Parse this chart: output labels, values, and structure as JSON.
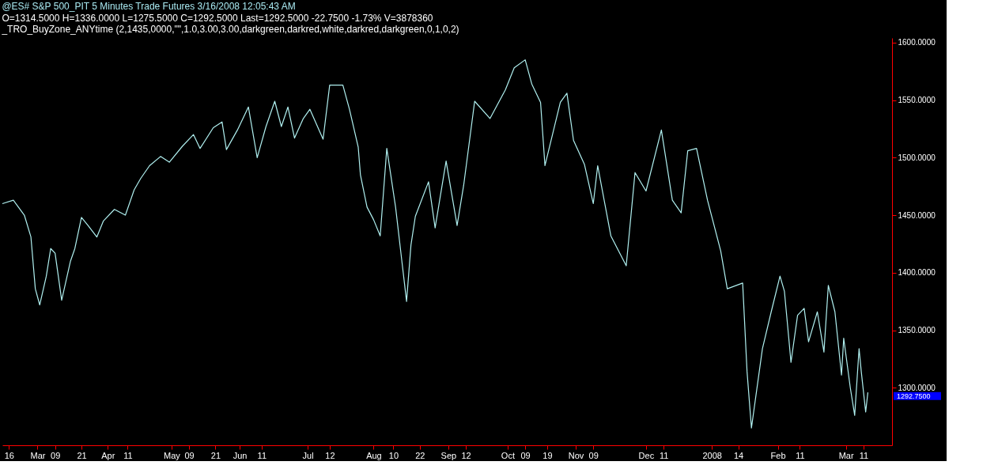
{
  "chart_data": {
    "type": "line",
    "title": "@ES#  S&P 500_PIT  5 Minutes  Trade  Futures  3/16/2008  12:05:43 AM",
    "subtitle": "O=1314.5000  H=1336.0000  L=1275.5000  C=1292.5000  Last=1292.5000  -22.7500  -1.73%  V=3878360",
    "annotations": [
      "_TRO_BuyZone_ANYtime  (2,1435,0000,\"\",1.0,3.00,3.00,darkgreen,darkred,white,darkred,darkgreen,0,1,0,2)"
    ],
    "x": [
      "2007-02-13",
      "2007-02-18",
      "2007-02-23",
      "2007-02-26",
      "2007-02-28",
      "2007-03-02",
      "2007-03-05",
      "2007-03-07",
      "2007-03-09",
      "2007-03-12",
      "2007-03-16",
      "2007-03-18",
      "2007-03-21",
      "2007-03-24",
      "2007-03-28",
      "2007-03-31",
      "2007-04-05",
      "2007-04-10",
      "2007-04-14",
      "2007-04-17",
      "2007-04-21",
      "2007-04-26",
      "2007-04-30",
      "2007-05-06",
      "2007-05-11",
      "2007-05-14",
      "2007-05-20",
      "2007-05-24",
      "2007-05-26",
      "2007-05-31",
      "2007-06-05",
      "2007-06-09",
      "2007-06-13",
      "2007-06-17",
      "2007-06-20",
      "2007-06-23",
      "2007-06-26",
      "2007-06-30",
      "2007-07-03",
      "2007-07-09",
      "2007-07-12",
      "2007-07-18",
      "2007-07-21",
      "2007-07-25",
      "2007-07-26",
      "2007-07-29",
      "2007-08-01",
      "2007-08-04",
      "2007-08-07",
      "2007-08-11",
      "2007-08-16",
      "2007-08-18",
      "2007-08-20",
      "2007-08-26",
      "2007-08-29",
      "2007-09-03",
      "2007-09-08",
      "2007-09-11",
      "2007-09-16",
      "2007-09-23",
      "2007-09-30",
      "2007-10-04",
      "2007-10-09",
      "2007-10-12",
      "2007-10-16",
      "2007-10-18",
      "2007-10-25",
      "2007-10-28",
      "2007-10-31",
      "2007-11-05",
      "2007-11-09",
      "2007-11-11",
      "2007-11-17",
      "2007-11-24",
      "2007-11-28",
      "2007-12-03",
      "2007-12-10",
      "2007-12-15",
      "2007-12-19",
      "2007-12-22",
      "2007-12-26",
      "2007-12-31",
      "2008-01-06",
      "2008-01-09",
      "2008-01-16",
      "2008-01-18",
      "2008-01-20",
      "2008-01-25",
      "2008-01-29",
      "2008-02-02",
      "2008-02-04",
      "2008-02-06",
      "2008-02-07",
      "2008-02-10",
      "2008-02-13",
      "2008-02-15",
      "2008-02-19",
      "2008-02-22",
      "2008-02-24",
      "2008-02-27",
      "2008-03-01",
      "2008-03-02",
      "2008-03-05",
      "2008-03-07",
      "2008-03-09",
      "2008-03-10",
      "2008-03-12",
      "2008-03-13"
    ],
    "series": [
      {
        "color": "#b0f0f0",
        "values": [
          1460,
          1463,
          1450,
          1431,
          1386,
          1372,
          1397,
          1421,
          1417,
          1376,
          1410,
          1421,
          1448,
          1441,
          1431,
          1445,
          1455,
          1450,
          1472,
          1482,
          1493,
          1501,
          1496,
          1510,
          1520,
          1508,
          1526,
          1531,
          1507,
          1524,
          1544,
          1500,
          1527,
          1549,
          1527,
          1544,
          1517,
          1534,
          1542,
          1516,
          1563,
          1563,
          1542,
          1509,
          1485,
          1457,
          1446,
          1432,
          1508,
          1457,
          1375,
          1424,
          1449,
          1479,
          1439,
          1497,
          1441,
          1476,
          1549,
          1534,
          1559,
          1578,
          1585,
          1564,
          1548,
          1493,
          1548,
          1556,
          1515,
          1494,
          1460,
          1493,
          1432,
          1406,
          1487,
          1471,
          1524,
          1463,
          1452,
          1506,
          1508,
          1463,
          1419,
          1386,
          1391,
          1314,
          1265,
          1334,
          1366,
          1397,
          1384,
          1343,
          1322,
          1363,
          1369,
          1340,
          1366,
          1331,
          1389,
          1366,
          1311,
          1343,
          1300,
          1276,
          1334,
          1314,
          1279,
          1296
        ]
      }
    ],
    "ylim": [
      1250,
      1604
    ],
    "yticks": [
      {
        "value": 1300,
        "label": "1300.0000"
      },
      {
        "value": 1350,
        "label": "1350.0000"
      },
      {
        "value": 1400,
        "label": "1400.0000"
      },
      {
        "value": 1450,
        "label": "1450.0000"
      },
      {
        "value": 1500,
        "label": "1500.0000"
      },
      {
        "value": 1550,
        "label": "1550.0000"
      },
      {
        "value": 1600,
        "label": "1600.0000"
      }
    ],
    "xlim": [
      "2007-02-13",
      "2008-03-24"
    ],
    "xticks": [
      {
        "value": "2007-02-16",
        "label": "16"
      },
      {
        "value": "2007-03-01",
        "label": "Mar"
      },
      {
        "value": "2007-03-09",
        "label": "09"
      },
      {
        "value": "2007-03-21",
        "label": "21"
      },
      {
        "value": "2007-04-02",
        "label": "Apr"
      },
      {
        "value": "2007-04-11",
        "label": "11"
      },
      {
        "value": "2007-05-01",
        "label": "May"
      },
      {
        "value": "2007-05-09",
        "label": "09"
      },
      {
        "value": "2007-05-21",
        "label": "21"
      },
      {
        "value": "2007-06-01",
        "label": "Jun"
      },
      {
        "value": "2007-06-11",
        "label": "11"
      },
      {
        "value": "2007-07-02",
        "label": "Jul"
      },
      {
        "value": "2007-07-12",
        "label": "12"
      },
      {
        "value": "2007-08-01",
        "label": "Aug"
      },
      {
        "value": "2007-08-10",
        "label": "10"
      },
      {
        "value": "2007-08-22",
        "label": "22"
      },
      {
        "value": "2007-09-04",
        "label": "Sep"
      },
      {
        "value": "2007-09-12",
        "label": "12"
      },
      {
        "value": "2007-10-01",
        "label": "Oct"
      },
      {
        "value": "2007-10-09",
        "label": "09"
      },
      {
        "value": "2007-10-19",
        "label": "19"
      },
      {
        "value": "2007-11-01",
        "label": "Nov"
      },
      {
        "value": "2007-11-09",
        "label": "09"
      },
      {
        "value": "2007-12-03",
        "label": "Dec"
      },
      {
        "value": "2007-12-11",
        "label": "11"
      },
      {
        "value": "2008-01-02",
        "label": "2008"
      },
      {
        "value": "2008-01-14",
        "label": "14"
      },
      {
        "value": "2008-02-01",
        "label": "Feb"
      },
      {
        "value": "2008-02-11",
        "label": "11"
      },
      {
        "value": "2008-03-03",
        "label": "Mar"
      },
      {
        "value": "2008-03-11",
        "label": "11"
      }
    ],
    "ref_lines": [
      {
        "axis": "y",
        "value": 1292.75,
        "label": "1292.7500",
        "color": "#0000ff"
      }
    ],
    "grid": false,
    "marker": "none",
    "line_style": "solid"
  }
}
